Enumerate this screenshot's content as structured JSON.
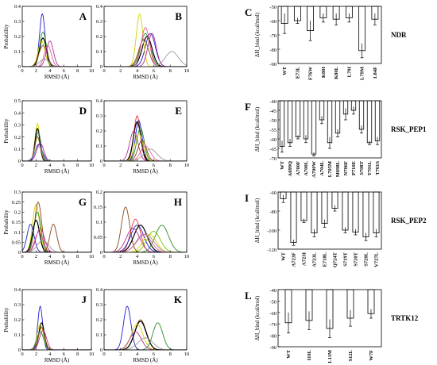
{
  "chart_data": [
    {
      "id": "A",
      "type": "line",
      "xlabel": "RMSD (Å)",
      "ylabel": "Probability",
      "xlim": [
        0,
        10
      ],
      "ylim": [
        0,
        0.4
      ],
      "xticks": [
        0,
        2,
        4,
        6,
        8,
        10
      ],
      "yticks": [
        0,
        0.1,
        0.2,
        0.3,
        0.4
      ],
      "series": [
        {
          "color": "#1f1fd0",
          "peak": 2.9,
          "height": 0.35,
          "width": 0.4
        },
        {
          "color": "#2a8c2a",
          "peak": 3.0,
          "height": 0.23,
          "width": 0.5
        },
        {
          "color": "#000000",
          "peak": 3.0,
          "height": 0.19,
          "width": 0.5
        },
        {
          "color": "#d4d400",
          "peak": 2.8,
          "height": 0.17,
          "width": 0.5
        },
        {
          "color": "#8b4513",
          "peak": 3.0,
          "height": 0.14,
          "width": 0.6
        },
        {
          "color": "#b03090",
          "peak": 4.0,
          "height": 0.17,
          "width": 0.5
        },
        {
          "color": "#e85a9e",
          "peak": 3.7,
          "height": 0.14,
          "width": 0.5
        },
        {
          "color": "#999999",
          "peak": 3.2,
          "height": 0.05,
          "width": 0.7
        }
      ]
    },
    {
      "id": "B",
      "type": "line",
      "xlabel": "RMSD (Å)",
      "ylabel": "",
      "xlim": [
        0,
        10
      ],
      "ylim": [
        0,
        0.4
      ],
      "xticks": [
        0,
        2,
        4,
        6,
        8,
        10
      ],
      "yticks": [
        0,
        0.1,
        0.2,
        0.3,
        0.4
      ],
      "series": [
        {
          "color": "#1f1fd0",
          "peak": 5.6,
          "height": 0.22,
          "width": 0.6
        },
        {
          "color": "#2a8c2a",
          "peak": 5.0,
          "height": 0.22,
          "width": 0.6
        },
        {
          "color": "#000000",
          "peak": 5.2,
          "height": 0.2,
          "width": 0.6
        },
        {
          "color": "#d4d400",
          "peak": 4.3,
          "height": 0.35,
          "width": 0.4
        },
        {
          "color": "#8b4513",
          "peak": 4.8,
          "height": 0.18,
          "width": 0.6
        },
        {
          "color": "#b03090",
          "peak": 5.8,
          "height": 0.22,
          "width": 0.5
        },
        {
          "color": "#e85a9e",
          "peak": 5.0,
          "height": 0.26,
          "width": 0.5
        },
        {
          "color": "#999999",
          "peak": 8.2,
          "height": 0.1,
          "width": 0.8
        }
      ]
    },
    {
      "id": "C",
      "type": "bar",
      "protein": "NDR",
      "ylabel": "ΔH_bind (kcal/mol)",
      "ylim": [
        -90,
        -50
      ],
      "yticks": [
        -50,
        -60,
        -70,
        -80,
        -90
      ],
      "categories": [
        "WT",
        "E73L",
        "F76W",
        "K80I",
        "K80L",
        "L79I",
        "L79M",
        "L84F"
      ],
      "values": [
        -62,
        -60,
        -67,
        -58,
        -59,
        -58,
        -81,
        -59
      ],
      "errors": [
        7,
        2,
        7,
        3,
        4,
        3,
        5,
        4
      ]
    },
    {
      "id": "D",
      "type": "line",
      "xlabel": "RMSD (Å)",
      "ylabel": "Probability",
      "xlim": [
        0,
        10
      ],
      "ylim": [
        0,
        0.5
      ],
      "xticks": [
        0,
        2,
        4,
        6,
        8,
        10
      ],
      "yticks": [
        0,
        0.1,
        0.2,
        0.3,
        0.4,
        0.5
      ],
      "series": [
        {
          "color": "#d4d400",
          "peak": 2.2,
          "height": 0.31,
          "width": 0.35
        },
        {
          "color": "#000000",
          "peak": 2.2,
          "height": 0.27,
          "width": 0.35
        },
        {
          "color": "#2a8c2a",
          "peak": 2.3,
          "height": 0.24,
          "width": 0.4
        },
        {
          "color": "#8b4513",
          "peak": 2.2,
          "height": 0.2,
          "width": 0.4
        },
        {
          "color": "#1f1fd0",
          "peak": 2.4,
          "height": 0.14,
          "width": 0.5
        },
        {
          "color": "#b03090",
          "peak": 2.6,
          "height": 0.15,
          "width": 0.5
        },
        {
          "color": "#999999",
          "peak": 2.4,
          "height": 0.12,
          "width": 0.6
        }
      ]
    },
    {
      "id": "E",
      "type": "line",
      "xlabel": "RMSD (Å)",
      "ylabel": "",
      "xlim": [
        0,
        10
      ],
      "ylim": [
        0,
        0.4
      ],
      "xticks": [
        0,
        2,
        4,
        6,
        8,
        10
      ],
      "yticks": [
        0,
        0.1,
        0.2,
        0.3,
        0.4
      ],
      "series": [
        {
          "color": "#e03030",
          "peak": 4.0,
          "height": 0.3,
          "width": 0.4
        },
        {
          "color": "#1f1fd0",
          "peak": 4.2,
          "height": 0.27,
          "width": 0.4
        },
        {
          "color": "#000000",
          "peak": 4.0,
          "height": 0.26,
          "width": 0.45
        },
        {
          "color": "#2a8c2a",
          "peak": 4.4,
          "height": 0.22,
          "width": 0.45
        },
        {
          "color": "#b03090",
          "peak": 3.6,
          "height": 0.2,
          "width": 0.5
        },
        {
          "color": "#d4d400",
          "peak": 4.2,
          "height": 0.18,
          "width": 0.5
        },
        {
          "color": "#8b4513",
          "peak": 4.6,
          "height": 0.14,
          "width": 0.5
        },
        {
          "color": "#e85a9e",
          "peak": 5.0,
          "height": 0.1,
          "width": 0.6
        },
        {
          "color": "#999999",
          "peak": 5.6,
          "height": 0.08,
          "width": 0.8
        }
      ]
    },
    {
      "id": "F",
      "type": "bar",
      "protein": "RSK_PEP1",
      "ylabel": "ΔH_bind (kcal/mol)",
      "ylim": [
        -70,
        -40
      ],
      "yticks": [
        -40,
        -45,
        -50,
        -55,
        -60,
        -65,
        -70
      ],
      "categories": [
        "WT",
        "A699Q",
        "A700F",
        "A700L",
        "A700W",
        "A704L",
        "L705M",
        "M698L",
        "N706F",
        "P710E",
        "S708T",
        "T701L",
        "T701S"
      ],
      "values": [
        -64,
        -62,
        -59,
        -60,
        -68,
        -50,
        -62,
        -57,
        -47,
        -45,
        -55,
        -62,
        -61
      ],
      "errors": [
        3,
        2,
        1,
        2,
        1,
        2,
        3,
        2,
        3,
        2,
        2,
        1,
        2
      ]
    },
    {
      "id": "G",
      "type": "line",
      "xlabel": "RMSD (Å)",
      "ylabel": "Probability",
      "xlim": [
        0,
        10
      ],
      "ylim": [
        0,
        0.3
      ],
      "xticks": [
        0,
        2,
        4,
        6,
        8,
        10
      ],
      "yticks": [
        0,
        0.05,
        0.1,
        0.15,
        0.2,
        0.25,
        0.3
      ],
      "series": [
        {
          "color": "#d4d400",
          "peak": 2.0,
          "height": 0.24,
          "width": 0.5
        },
        {
          "color": "#8b4513",
          "peak": 2.3,
          "height": 0.25,
          "width": 0.5
        },
        {
          "color": "#2a8c2a",
          "peak": 2.2,
          "height": 0.2,
          "width": 0.5
        },
        {
          "color": "#000000",
          "peak": 2.0,
          "height": 0.16,
          "width": 0.5
        },
        {
          "color": "#1f1fd0",
          "peak": 1.2,
          "height": 0.14,
          "width": 0.5
        },
        {
          "color": "#b03090",
          "peak": 2.6,
          "height": 0.12,
          "width": 0.6
        },
        {
          "color": "#e85a9e",
          "peak": 2.4,
          "height": 0.1,
          "width": 0.6
        },
        {
          "color": "#999999",
          "peak": 3.0,
          "height": 0.06,
          "width": 0.8
        },
        {
          "color": "#8b4513",
          "peak": 4.5,
          "height": 0.14,
          "width": 0.5
        }
      ]
    },
    {
      "id": "H",
      "type": "line",
      "xlabel": "RMSD (Å)",
      "ylabel": "",
      "xlim": [
        0,
        10
      ],
      "ylim": [
        0,
        0.2
      ],
      "xticks": [
        0,
        2,
        4,
        6,
        8,
        10
      ],
      "yticks": [
        0,
        0.05,
        0.1,
        0.15,
        0.2
      ],
      "series": [
        {
          "color": "#8b4513",
          "peak": 2.6,
          "height": 0.15,
          "width": 0.5
        },
        {
          "color": "#e03030",
          "peak": 3.8,
          "height": 0.11,
          "width": 0.6
        },
        {
          "color": "#1f1fd0",
          "peak": 4.0,
          "height": 0.09,
          "width": 0.8
        },
        {
          "color": "#000000",
          "peak": 4.4,
          "height": 0.09,
          "width": 0.8
        },
        {
          "color": "#b03090",
          "peak": 3.5,
          "height": 0.08,
          "width": 0.8
        },
        {
          "color": "#2a8c2a",
          "peak": 7.0,
          "height": 0.09,
          "width": 0.8
        },
        {
          "color": "#80c000",
          "peak": 6.0,
          "height": 0.07,
          "width": 0.8
        },
        {
          "color": "#d4d400",
          "peak": 5.5,
          "height": 0.06,
          "width": 0.8
        },
        {
          "color": "#999999",
          "peak": 5.0,
          "height": 0.06,
          "width": 1.0
        },
        {
          "color": "#e85a9e",
          "peak": 4.8,
          "height": 0.06,
          "width": 0.9
        }
      ]
    },
    {
      "id": "I",
      "type": "bar",
      "protein": "RSK_PEP2",
      "ylabel": "ΔH_bind (kcal/mol)",
      "ylim": [
        -120,
        -60
      ],
      "yticks": [
        -60,
        -80,
        -100,
        -120
      ],
      "categories": [
        "WT",
        "A723F",
        "A723I",
        "A723L",
        "E718L",
        "Q724T",
        "S719T",
        "S720T",
        "S720L",
        "V727L"
      ],
      "values": [
        -67,
        -113,
        -90,
        -103,
        -93,
        -77,
        -100,
        -102,
        -107,
        -103
      ],
      "errors": [
        4,
        3,
        2,
        4,
        4,
        3,
        3,
        3,
        4,
        4
      ]
    },
    {
      "id": "J",
      "type": "line",
      "xlabel": "RMSD (Å)",
      "ylabel": "Probability",
      "xlim": [
        0,
        10
      ],
      "ylim": [
        0,
        0.4
      ],
      "xticks": [
        0,
        2,
        4,
        6,
        8,
        10
      ],
      "yticks": [
        0,
        0.1,
        0.2,
        0.3,
        0.4
      ],
      "series": [
        {
          "color": "#1f1fd0",
          "peak": 2.6,
          "height": 0.29,
          "width": 0.35
        },
        {
          "color": "#000000",
          "peak": 2.8,
          "height": 0.18,
          "width": 0.4
        },
        {
          "color": "#d4d400",
          "peak": 2.6,
          "height": 0.17,
          "width": 0.45
        },
        {
          "color": "#8b4513",
          "peak": 2.8,
          "height": 0.15,
          "width": 0.45
        },
        {
          "color": "#2a8c2a",
          "peak": 2.6,
          "height": 0.12,
          "width": 0.5
        },
        {
          "color": "#b03090",
          "peak": 3.0,
          "height": 0.13,
          "width": 0.5
        }
      ]
    },
    {
      "id": "K",
      "type": "line",
      "xlabel": "RMSD (Å)",
      "ylabel": "",
      "xlim": [
        0,
        10
      ],
      "ylim": [
        0,
        0.4
      ],
      "xticks": [
        0,
        2,
        4,
        6,
        8,
        10
      ],
      "yticks": [
        0,
        0.1,
        0.2,
        0.3,
        0.4
      ],
      "series": [
        {
          "color": "#1f1fd0",
          "peak": 2.8,
          "height": 0.29,
          "width": 0.45
        },
        {
          "color": "#8b4513",
          "peak": 4.4,
          "height": 0.2,
          "width": 0.7
        },
        {
          "color": "#000000",
          "peak": 4.4,
          "height": 0.19,
          "width": 0.7
        },
        {
          "color": "#d4d400",
          "peak": 4.0,
          "height": 0.17,
          "width": 0.7
        },
        {
          "color": "#2a8c2a",
          "peak": 6.5,
          "height": 0.18,
          "width": 0.6
        },
        {
          "color": "#b03090",
          "peak": 3.8,
          "height": 0.12,
          "width": 0.7
        },
        {
          "color": "#999999",
          "peak": 5.0,
          "height": 0.08,
          "width": 0.9
        }
      ]
    },
    {
      "id": "L",
      "type": "bar",
      "protein": "TRTK12",
      "ylabel": "ΔH_bind (kcal/mol)",
      "ylim": [
        -90,
        -40
      ],
      "yticks": [
        -40,
        -50,
        -60,
        -70,
        -80,
        -90
      ],
      "categories": [
        "WT",
        "I10L",
        "L11M",
        "S12L",
        "W7F"
      ],
      "values": [
        -69,
        -67,
        -74,
        -65,
        -61
      ],
      "errors": [
        9,
        8,
        8,
        7,
        4
      ]
    }
  ]
}
